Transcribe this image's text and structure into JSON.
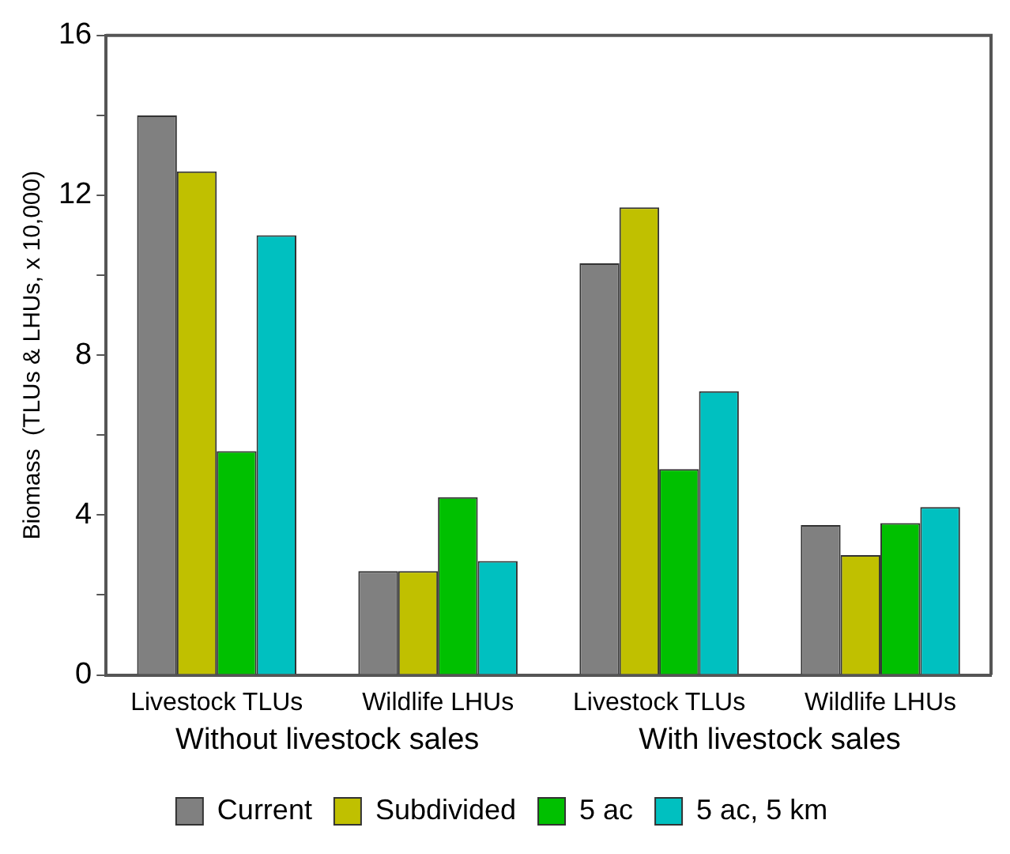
{
  "chart_data": {
    "type": "bar",
    "ylabel": "Biomass  (TLUs & LHUs, x 10,000)",
    "categories": [
      "Livestock TLUs",
      "Wildlife LHUs",
      "Livestock TLUs",
      "Wildlife LHUs"
    ],
    "series": [
      {
        "name": "Current",
        "color": "#808080",
        "values": [
          14.0,
          2.6,
          10.3,
          3.75
        ]
      },
      {
        "name": "Subdivided",
        "color": "#c0c000",
        "values": [
          12.6,
          2.6,
          11.7,
          3.0
        ]
      },
      {
        "name": "5 ac",
        "color": "#00c000",
        "values": [
          5.6,
          4.45,
          5.15,
          3.8
        ]
      },
      {
        "name": "5 ac, 5 km",
        "color": "#00c0c0",
        "values": [
          11.0,
          2.85,
          7.1,
          4.2
        ]
      }
    ],
    "ylim": [
      0,
      16
    ],
    "yticks": [
      0,
      {
        "value": 2,
        "label": null
      },
      4,
      {
        "value": 6,
        "label": null
      },
      8,
      {
        "value": 10,
        "label": null
      },
      12,
      {
        "value": 14,
        "label": null
      },
      16
    ],
    "annotations": [
      "Without livestock sales",
      "With livestock sales"
    ],
    "grid": false,
    "legend": "bottom"
  }
}
